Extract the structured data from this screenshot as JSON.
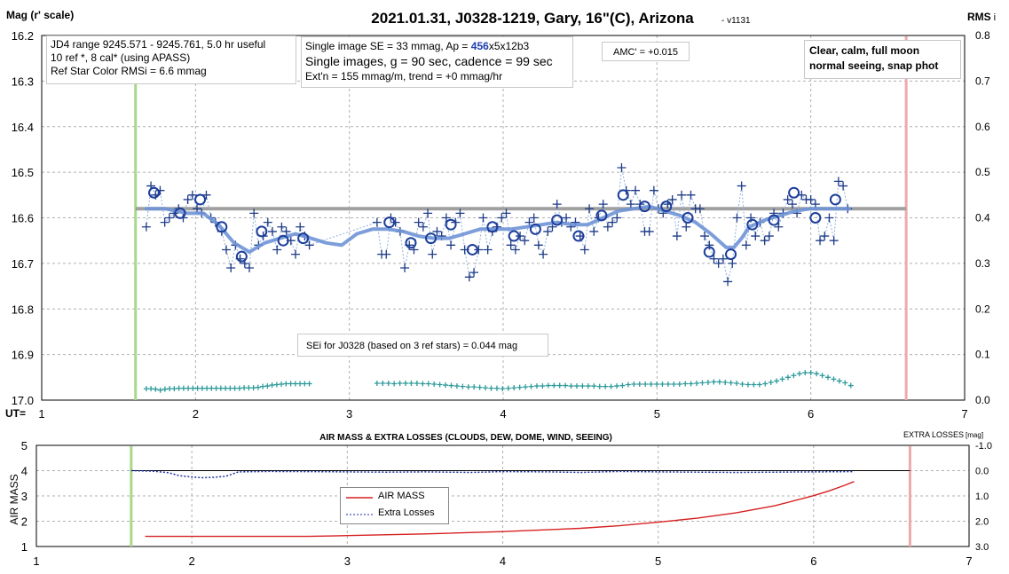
{
  "chart_data": [
    {
      "type": "scatter",
      "title": "2021.01.31, J0328-1219, Gary, 16\"(C), Arizona",
      "version": "- v1131",
      "ylabel_left": "Mag (r' scale)",
      "ylabel_right": "RMS",
      "ylabel_right_suffix": "i",
      "xlabel": "UT=",
      "xlim": [
        1,
        7
      ],
      "ylim_left": [
        16.2,
        17.0
      ],
      "ylim_right": [
        0.0,
        0.8
      ],
      "left_ticks": [
        "16.2",
        "16.3",
        "16.4",
        "16.5",
        "16.6",
        "16.7",
        "16.8",
        "16.9",
        "17.0"
      ],
      "right_ticks": [
        "0.8",
        "0.7",
        "0.6",
        "0.5",
        "0.4",
        "0.3",
        "0.2",
        "0.1",
        "0.0"
      ],
      "x_ticks": [
        "1",
        "2",
        "3",
        "4",
        "5",
        "6",
        "7"
      ],
      "grid": true,
      "start_marker_ut": 1.61,
      "end_marker_ut": 6.62,
      "reference_level_mag": 16.58,
      "reference_level_ut_range": [
        1.61,
        6.62
      ],
      "annotations": {
        "jd_box": [
          "JD4 range 9245.571 - 9245.761, 5.0 hr useful",
          " 10 ref *, 8 cal* (using APASS)",
          "Ref Star Color RMSi = 6.6 mmag"
        ],
        "se_line1_prefix": "Single image SE = 33 mmag, Ap = ",
        "se_line1_highlight": "456",
        "se_line1_suffix": "x5x12b3",
        "se_line2": "Single images, g = 90 sec, cadence = 99 sec",
        "se_line3": "Ext'n = 155 mmag/m, trend = +0 mmag/hr",
        "amc": "AMC' = +0.015",
        "conditions": [
          "Clear, calm, full moon",
          "normal seeing, snap phot"
        ],
        "sei": "SEi for J0328 (based on 3 ref stars) = 0.044 mag"
      },
      "series": [
        {
          "kind": "single images",
          "marker": "plus",
          "color": "#1f3c88",
          "x": [
            1.68,
            1.71,
            1.74,
            1.77,
            1.8,
            1.83,
            1.86,
            1.89,
            1.92,
            1.95,
            1.98,
            2.01,
            2.04,
            2.07,
            2.1,
            2.13,
            2.17,
            2.2,
            2.23,
            2.26,
            2.29,
            2.32,
            2.35,
            2.38,
            2.41,
            2.44,
            2.47,
            2.5,
            2.53,
            2.56,
            2.59,
            2.62,
            2.65,
            2.68,
            2.71,
            2.74,
            3.18,
            3.21,
            3.24,
            3.27,
            3.3,
            3.33,
            3.36,
            3.39,
            3.42,
            3.45,
            3.48,
            3.51,
            3.54,
            3.57,
            3.6,
            3.63,
            3.66,
            3.69,
            3.72,
            3.75,
            3.78,
            3.81,
            3.84,
            3.87,
            3.9,
            3.93,
            3.96,
            3.99,
            4.02,
            4.05,
            4.08,
            4.11,
            4.14,
            4.17,
            4.2,
            4.23,
            4.26,
            4.29,
            4.32,
            4.35,
            4.38,
            4.41,
            4.44,
            4.47,
            4.5,
            4.53,
            4.56,
            4.59,
            4.62,
            4.65,
            4.68,
            4.71,
            4.74,
            4.77,
            4.8,
            4.83,
            4.86,
            4.89,
            4.92,
            4.95,
            4.98,
            5.01,
            5.04,
            5.07,
            5.1,
            5.13,
            5.16,
            5.19,
            5.22,
            5.25,
            5.28,
            5.31,
            5.34,
            5.37,
            5.4,
            5.43,
            5.46,
            5.49,
            5.52,
            5.55,
            5.58,
            5.61,
            5.64,
            5.67,
            5.7,
            5.73,
            5.76,
            5.79,
            5.82,
            5.85,
            5.88,
            5.91,
            5.94,
            5.97,
            6.0,
            6.03,
            6.06,
            6.09,
            6.12,
            6.15,
            6.18,
            6.21,
            6.24
          ],
          "y": [
            16.62,
            16.53,
            16.55,
            16.54,
            16.61,
            16.6,
            16.59,
            16.58,
            16.6,
            16.56,
            16.55,
            16.58,
            16.59,
            16.55,
            16.6,
            16.61,
            16.63,
            16.67,
            16.71,
            16.66,
            16.69,
            16.7,
            16.71,
            16.59,
            16.66,
            16.64,
            16.61,
            16.63,
            16.67,
            16.62,
            16.63,
            16.65,
            16.68,
            16.62,
            16.64,
            16.66,
            16.61,
            16.68,
            16.68,
            16.6,
            16.61,
            16.63,
            16.71,
            16.66,
            16.67,
            16.61,
            16.62,
            16.59,
            16.68,
            16.63,
            16.64,
            16.6,
            16.66,
            16.61,
            16.59,
            16.67,
            16.73,
            16.72,
            16.67,
            16.6,
            16.67,
            16.63,
            16.62,
            16.6,
            16.59,
            16.66,
            16.67,
            16.64,
            16.65,
            16.61,
            16.6,
            16.66,
            16.68,
            16.63,
            16.62,
            16.57,
            16.61,
            16.6,
            16.62,
            16.61,
            16.64,
            16.67,
            16.58,
            16.63,
            16.6,
            16.57,
            16.62,
            16.61,
            16.6,
            16.49,
            16.54,
            16.57,
            16.54,
            16.57,
            16.63,
            16.63,
            16.54,
            16.58,
            16.59,
            16.57,
            16.56,
            16.64,
            16.55,
            16.62,
            16.55,
            16.58,
            16.58,
            16.64,
            16.66,
            16.69,
            16.7,
            16.69,
            16.74,
            16.7,
            16.6,
            16.53,
            16.66,
            16.6,
            16.64,
            16.61,
            16.65,
            16.64,
            16.59,
            16.62,
            16.59,
            16.56,
            16.57,
            16.59,
            16.55,
            16.56,
            16.56,
            16.57,
            16.65,
            16.64,
            16.6,
            16.65,
            16.52,
            16.53,
            16.58
          ],
          "line_color": "#8fb0dc"
        },
        {
          "kind": "bin averages",
          "marker": "circle",
          "color": "#1c3e9a",
          "x": [
            1.73,
            1.9,
            2.03,
            2.17,
            2.3,
            2.43,
            2.57,
            2.7,
            3.26,
            3.4,
            3.53,
            3.66,
            3.8,
            3.93,
            4.07,
            4.21,
            4.35,
            4.49,
            4.64,
            4.78,
            4.92,
            5.06,
            5.2,
            5.34,
            5.48,
            5.62,
            5.76,
            5.89,
            6.03,
            6.16
          ],
          "y": [
            16.545,
            16.59,
            16.56,
            16.62,
            16.685,
            16.63,
            16.65,
            16.645,
            16.61,
            16.655,
            16.645,
            16.615,
            16.67,
            16.62,
            16.64,
            16.625,
            16.605,
            16.64,
            16.595,
            16.55,
            16.575,
            16.575,
            16.6,
            16.675,
            16.68,
            16.615,
            16.605,
            16.545,
            16.6,
            16.56
          ]
        },
        {
          "kind": "smoothed fit",
          "marker": "none",
          "color": "#6f94d6",
          "x": [
            1.68,
            1.8,
            1.95,
            2.05,
            2.15,
            2.25,
            2.35,
            2.45,
            2.55,
            2.65,
            2.75,
            2.85,
            2.95,
            3.05,
            3.15,
            3.25,
            3.35,
            3.45,
            3.55,
            3.65,
            3.75,
            3.85,
            3.95,
            4.05,
            4.15,
            4.25,
            4.35,
            4.45,
            4.55,
            4.65,
            4.75,
            4.85,
            4.95,
            5.05,
            5.15,
            5.25,
            5.35,
            5.45,
            5.5,
            5.55,
            5.6,
            5.7,
            5.8,
            5.9,
            6.0,
            6.1,
            6.2,
            6.25
          ],
          "y": [
            16.58,
            16.58,
            16.59,
            16.59,
            16.615,
            16.655,
            16.675,
            16.655,
            16.645,
            16.635,
            16.645,
            16.655,
            16.66,
            16.635,
            16.625,
            16.625,
            16.63,
            16.64,
            16.645,
            16.645,
            16.635,
            16.625,
            16.625,
            16.625,
            16.62,
            16.615,
            16.61,
            16.615,
            16.615,
            16.6,
            16.585,
            16.58,
            16.575,
            16.585,
            16.595,
            16.61,
            16.635,
            16.665,
            16.665,
            16.645,
            16.62,
            16.605,
            16.595,
            16.585,
            16.58,
            16.58,
            16.58,
            16.58
          ]
        },
        {
          "kind": "SEi (RMS, right axis)",
          "marker": "plus",
          "color": "#2e9a9a",
          "segments": [
            {
              "x_range": [
                1.68,
                2.74
              ],
              "y": [
                0.025,
                0.025,
                0.024,
                0.022,
                0.024,
                0.025,
                0.025,
                0.026,
                0.026,
                0.026,
                0.026,
                0.026,
                0.026,
                0.026,
                0.026,
                0.026,
                0.026,
                0.026,
                0.026,
                0.026,
                0.026,
                0.027,
                0.027,
                0.027,
                0.028,
                0.03,
                0.031,
                0.033,
                0.034,
                0.035,
                0.036,
                0.036,
                0.036,
                0.036,
                0.036,
                0.036
              ]
            },
            {
              "x_range": [
                3.18,
                6.26
              ],
              "y": [
                0.037,
                0.037,
                0.037,
                0.036,
                0.037,
                0.037,
                0.037,
                0.037,
                0.036,
                0.036,
                0.035,
                0.034,
                0.033,
                0.032,
                0.031,
                0.03,
                0.029,
                0.029,
                0.028,
                0.027,
                0.026,
                0.026,
                0.025,
                0.026,
                0.027,
                0.028,
                0.029,
                0.03,
                0.031,
                0.031,
                0.032,
                0.032,
                0.032,
                0.032,
                0.031,
                0.031,
                0.031,
                0.031,
                0.031,
                0.03,
                0.03,
                0.03,
                0.031,
                0.032,
                0.034,
                0.035,
                0.035,
                0.035,
                0.035,
                0.035,
                0.035,
                0.035,
                0.035,
                0.035,
                0.036,
                0.036,
                0.037,
                0.038,
                0.039,
                0.04,
                0.04,
                0.039,
                0.038,
                0.037,
                0.035,
                0.034,
                0.034,
                0.034,
                0.036,
                0.039,
                0.042,
                0.046,
                0.05,
                0.054,
                0.058,
                0.06,
                0.06,
                0.058,
                0.054,
                0.05,
                0.046,
                0.042,
                0.038,
                0.032
              ]
            }
          ]
        }
      ]
    },
    {
      "type": "line",
      "title": "AIR MASS & EXTRA LOSSES (CLOUDS, DEW, DOME, WIND, SEEING)",
      "ylabel_left": "AIR MASS",
      "ylabel_right": "EXTRA LOSSES",
      "ylabel_right_unit": "[mag]",
      "xlim": [
        1,
        7
      ],
      "ylim_left": [
        1,
        5
      ],
      "ylim_right": [
        -1.0,
        3.0
      ],
      "left_ticks": [
        "5",
        "4",
        "3",
        "2",
        "1"
      ],
      "right_ticks": [
        "-1.0",
        "0.0",
        "1.0",
        "2.0",
        "3.0"
      ],
      "x_ticks": [
        "1",
        "2",
        "3",
        "4",
        "5",
        "6",
        "7"
      ],
      "start_marker_ut": 1.61,
      "end_marker_ut": 6.62,
      "legend": [
        "AIR MASS",
        "Extra Losses"
      ],
      "series": [
        {
          "name": "AIR MASS",
          "color": "#d62020",
          "x": [
            1.7,
            2.0,
            2.5,
            2.75,
            3.0,
            3.5,
            4.0,
            4.5,
            4.75,
            5.0,
            5.25,
            5.5,
            5.75,
            6.0,
            6.1,
            6.2,
            6.26
          ],
          "y": [
            1.4,
            1.4,
            1.4,
            1.4,
            1.43,
            1.5,
            1.59,
            1.72,
            1.82,
            1.96,
            2.12,
            2.33,
            2.61,
            3.01,
            3.2,
            3.42,
            3.57
          ]
        },
        {
          "name": "Extra Losses",
          "color": "#1c2f9c",
          "x": [
            1.61,
            1.75,
            1.85,
            1.92,
            2.0,
            2.07,
            2.15,
            2.22,
            2.3,
            2.5,
            2.75,
            3.25,
            3.5,
            3.8,
            4.0,
            4.3,
            4.5,
            4.75,
            5.0,
            5.25,
            5.5,
            5.75,
            6.0,
            6.26
          ],
          "y": [
            0.0,
            0.02,
            0.08,
            0.2,
            0.25,
            0.28,
            0.26,
            0.22,
            0.05,
            0.03,
            0.04,
            0.06,
            0.05,
            0.07,
            0.04,
            0.05,
            0.07,
            0.03,
            0.05,
            0.06,
            0.07,
            0.06,
            0.05,
            0.04
          ]
        }
      ]
    }
  ]
}
